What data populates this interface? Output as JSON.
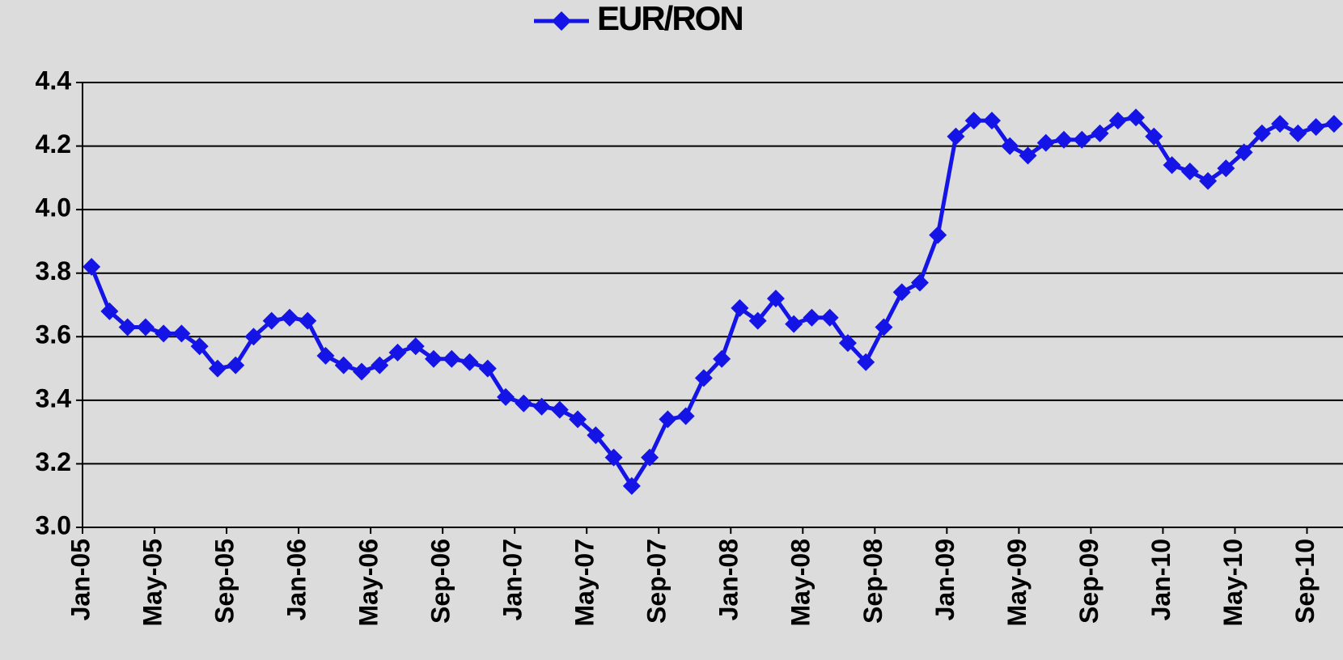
{
  "chart_data": {
    "type": "line",
    "categories": [
      "Jan-05",
      null,
      null,
      null,
      "May-05",
      null,
      null,
      null,
      "Sep-05",
      null,
      null,
      null,
      "Jan-06",
      null,
      null,
      null,
      "May-06",
      null,
      null,
      null,
      "Sep-06",
      null,
      null,
      null,
      "Jan-07",
      null,
      null,
      null,
      "May-07",
      null,
      null,
      null,
      "Sep-07",
      null,
      null,
      null,
      "Jan-08",
      null,
      null,
      null,
      "May-08",
      null,
      null,
      null,
      "Sep-08",
      null,
      null,
      null,
      "Jan-09",
      null,
      null,
      null,
      "May-09",
      null,
      null,
      null,
      "Sep-09",
      null,
      null,
      null,
      "Jan-10",
      null,
      null,
      null,
      "May-10",
      null,
      null,
      null,
      "Sep-10",
      null
    ],
    "series": [
      {
        "name": "EUR/RON",
        "color": "#1414e6",
        "values": [
          3.82,
          3.68,
          3.63,
          3.63,
          3.61,
          3.61,
          3.57,
          3.5,
          3.51,
          3.6,
          3.65,
          3.66,
          3.65,
          3.54,
          3.51,
          3.49,
          3.51,
          3.55,
          3.57,
          3.53,
          3.53,
          3.52,
          3.5,
          3.41,
          3.39,
          3.38,
          3.37,
          3.34,
          3.29,
          3.22,
          3.13,
          3.22,
          3.34,
          3.35,
          3.47,
          3.53,
          3.69,
          3.65,
          3.72,
          3.64,
          3.66,
          3.66,
          3.58,
          3.52,
          3.63,
          3.74,
          3.77,
          3.92,
          4.23,
          4.28,
          4.28,
          4.2,
          4.17,
          4.21,
          4.22,
          4.22,
          4.24,
          4.28,
          4.29,
          4.23,
          4.14,
          4.12,
          4.09,
          4.13,
          4.18,
          4.24,
          4.27,
          4.24,
          4.26,
          4.27
        ]
      }
    ],
    "ylim": [
      3.0,
      4.4
    ],
    "yticks": [
      {
        "value": 3.0,
        "label": "3.0"
      },
      3.2,
      3.4,
      3.6,
      3.8,
      {
        "value": 4.0,
        "label": "4.0"
      },
      4.2,
      4.4
    ],
    "grid": true,
    "legend": "top"
  }
}
